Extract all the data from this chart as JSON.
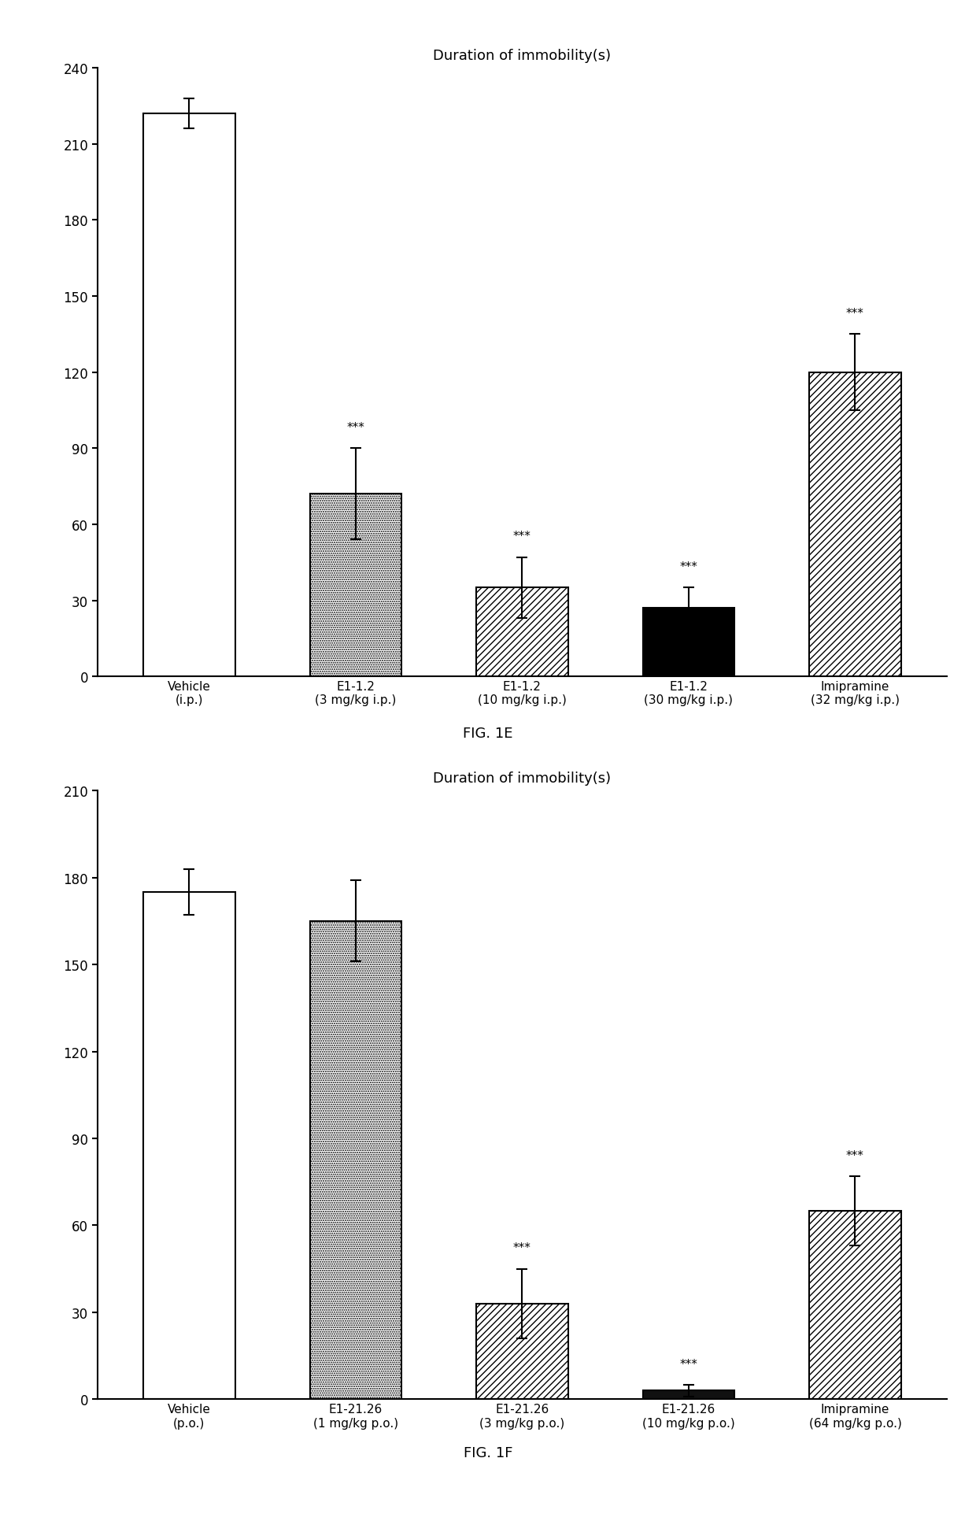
{
  "fig1e": {
    "title": "Duration of immobility(s)",
    "categories": [
      "Vehicle\n(i.p.)",
      "E1-1.2\n(3 mg/kg i.p.)",
      "E1-1.2\n(10 mg/kg i.p.)",
      "E1-1.2\n(30 mg/kg i.p.)",
      "Imipramine\n(32 mg/kg i.p.)"
    ],
    "values": [
      222,
      72,
      35,
      27,
      120
    ],
    "errors": [
      6,
      18,
      12,
      8,
      15
    ],
    "significance": [
      "",
      "***",
      "***",
      "***",
      "***"
    ],
    "ylim": [
      0,
      240
    ],
    "yticks": [
      0,
      30,
      60,
      90,
      120,
      150,
      180,
      210,
      240
    ],
    "bar_styles": [
      "white",
      "dots",
      "diag_hatch",
      "black",
      "wide_diag"
    ],
    "fig_label": "FIG. 1E"
  },
  "fig1f": {
    "title": "Duration of immobility(s)",
    "categories": [
      "Vehicle\n(p.o.)",
      "E1-21.26\n(1 mg/kg p.o.)",
      "E1-21.26\n(3 mg/kg p.o.)",
      "E1-21.26\n(10 mg/kg p.o.)",
      "Imipramine\n(64 mg/kg p.o.)"
    ],
    "values": [
      175,
      165,
      33,
      3,
      65
    ],
    "errors": [
      8,
      14,
      12,
      2,
      12
    ],
    "significance": [
      "",
      "",
      "***",
      "***",
      "***"
    ],
    "ylim": [
      0,
      210
    ],
    "yticks": [
      0,
      30,
      60,
      90,
      120,
      150,
      180,
      210
    ],
    "bar_styles": [
      "white",
      "dots",
      "diag_hatch",
      "near_black",
      "wide_diag"
    ],
    "fig_label": "FIG. 1F"
  },
  "background_color": "#ffffff",
  "bar_width": 0.55,
  "edgecolor": "#000000",
  "fontsize_title": 13,
  "fontsize_ticks": 12,
  "fontsize_labels": 11,
  "fontsize_sig": 11,
  "fontsize_figlabel": 13
}
